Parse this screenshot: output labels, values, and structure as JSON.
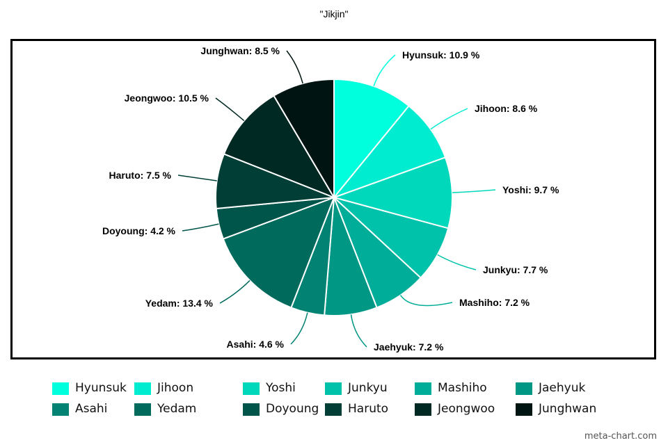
{
  "title": "\"Jikjin\"",
  "credit": "meta-chart.com",
  "chart_data": {
    "type": "pie",
    "title": "\"Jikjin\"",
    "legend_position": "bottom",
    "unit": "%",
    "slices": [
      {
        "label": "Hyunsuk",
        "value": 10.9,
        "display": "Hyunsuk: 10.9 %",
        "color": "#00ffdc"
      },
      {
        "label": "Jihoon",
        "value": 8.6,
        "display": "Jihoon: 8.6 %",
        "color": "#00ecd0"
      },
      {
        "label": "Yoshi",
        "value": 9.7,
        "display": "Yoshi: 9.7 %",
        "color": "#00d8bc"
      },
      {
        "label": "Junkyu",
        "value": 7.7,
        "display": "Junkyu: 7.7 %",
        "color": "#00c2aa"
      },
      {
        "label": "Mashiho",
        "value": 7.2,
        "display": "Mashiho: 7.2 %",
        "color": "#00ad98"
      },
      {
        "label": "Jaehyuk",
        "value": 7.2,
        "display": "Jaehyuk: 7.2 %",
        "color": "#009885"
      },
      {
        "label": "Asahi",
        "value": 4.6,
        "display": "Asahi: 4.6 %",
        "color": "#018272"
      },
      {
        "label": "Yedam",
        "value": 13.4,
        "display": "Yedam: 13.4 %",
        "color": "#006a5d"
      },
      {
        "label": "Doyoung",
        "value": 4.2,
        "display": "Doyoung: 4.2 %",
        "color": "#00554b"
      },
      {
        "label": "Haruto",
        "value": 7.5,
        "display": "Haruto: 7.5 %",
        "color": "#013e36"
      },
      {
        "label": "Jeongwoo",
        "value": 10.5,
        "display": "Jeongwoo: 10.5 %",
        "color": "#002924"
      },
      {
        "label": "Junghwan",
        "value": 8.5,
        "display": "Junghwan: 8.5 %",
        "color": "#001412"
      }
    ]
  }
}
